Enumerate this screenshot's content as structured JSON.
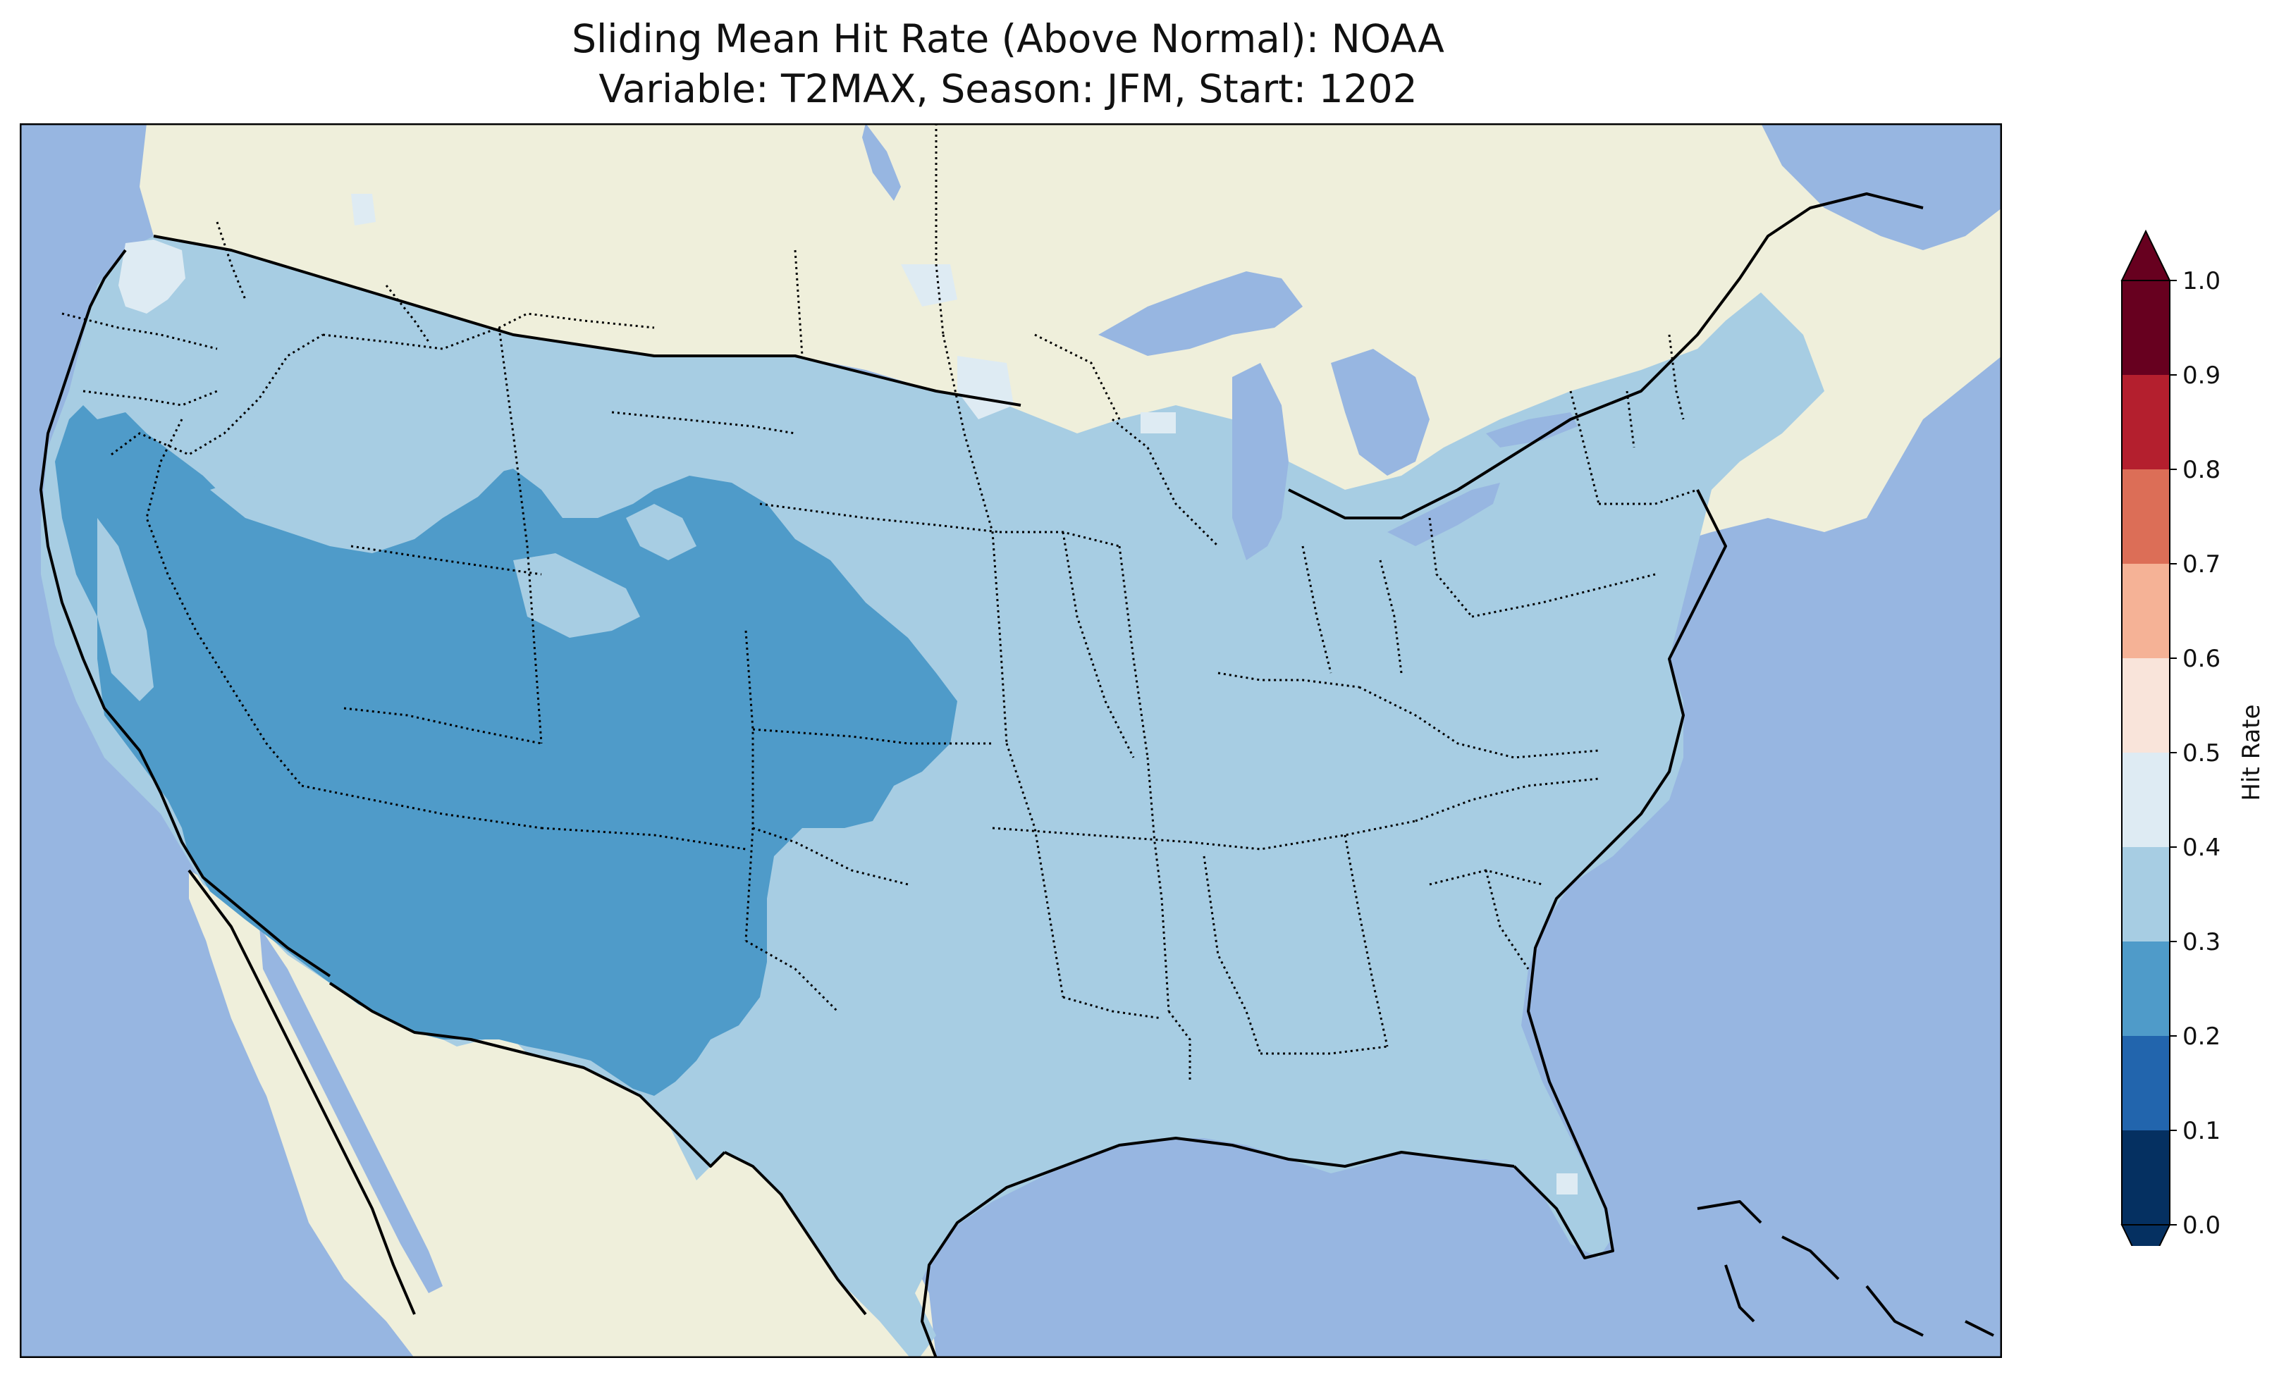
{
  "title": {
    "line1": "Sliding Mean Hit Rate (Above Normal): NOAA",
    "line2": "Variable: T2MAX, Season: JFM, Start: 1202"
  },
  "colors": {
    "ocean": "#97b6e1",
    "land": "#efefdb",
    "lakes": "#97b6e1",
    "bin_0.2_0.3": "#4f9bc9",
    "bin_0.3_0.4": "#a7cde3",
    "bin_0.4_0.5": "#deebf3"
  },
  "colorbar": {
    "label": "Hit Rate",
    "ticks": [
      "0.0",
      "0.1",
      "0.2",
      "0.3",
      "0.4",
      "0.5",
      "0.6",
      "0.7",
      "0.8",
      "0.9",
      "1.0"
    ],
    "bins": [
      {
        "range": [
          0.0,
          0.1
        ],
        "color": "#053061"
      },
      {
        "range": [
          0.1,
          0.2
        ],
        "color": "#2265ad"
      },
      {
        "range": [
          0.2,
          0.3
        ],
        "color": "#4f9bc9"
      },
      {
        "range": [
          0.3,
          0.4
        ],
        "color": "#a7cde3"
      },
      {
        "range": [
          0.4,
          0.5
        ],
        "color": "#deebf3"
      },
      {
        "range": [
          0.5,
          0.6
        ],
        "color": "#f9e4da"
      },
      {
        "range": [
          0.6,
          0.7
        ],
        "color": "#f5b296"
      },
      {
        "range": [
          0.7,
          0.8
        ],
        "color": "#dc6e57"
      },
      {
        "range": [
          0.8,
          0.9
        ],
        "color": "#b41f2e"
      },
      {
        "range": [
          0.9,
          1.0
        ],
        "color": "#67001f"
      }
    ],
    "extend": "both"
  },
  "map_layers": [
    {
      "name": "land",
      "color_key": "land"
    },
    {
      "name": "contiguous-us-hit-rate-0.3-0.4",
      "color_key": "bin_0.3_0.4"
    },
    {
      "name": "southwest-hit-rate-0.2-0.3",
      "color_key": "bin_0.2_0.3"
    },
    {
      "name": "northwest-hit-rate-0.4-0.5",
      "color_key": "bin_0.4_0.5"
    },
    {
      "name": "great-lakes",
      "color_key": "lakes"
    },
    {
      "name": "state-borders",
      "style": "dotted"
    },
    {
      "name": "coastlines",
      "style": "solid"
    }
  ]
}
